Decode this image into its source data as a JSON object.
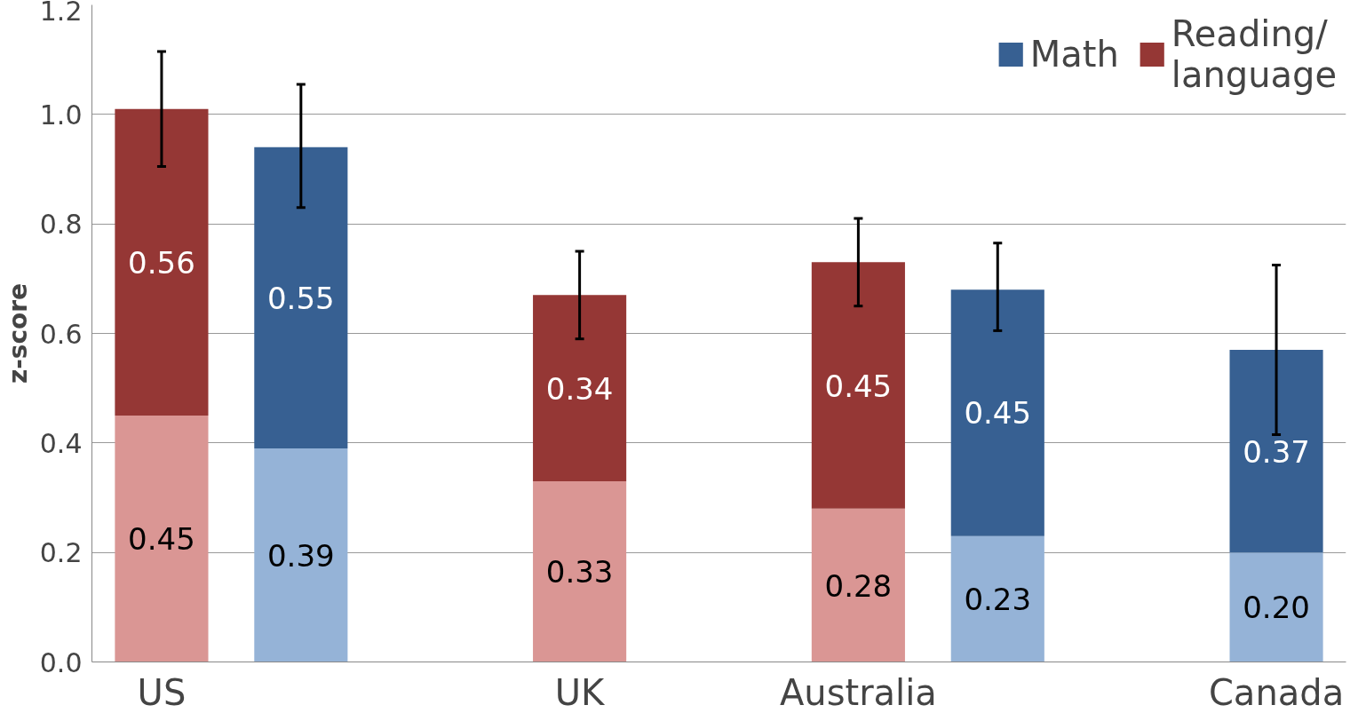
{
  "chart_data": {
    "type": "bar",
    "stacked": true,
    "ylabel": "z-score",
    "categories": [
      "US",
      null,
      null,
      "UK",
      null,
      "Australia",
      null,
      null,
      "Canada"
    ],
    "series": [
      {
        "color": "#da9694",
        "values": [
          0.45,
          null,
          null,
          0.33,
          null,
          0.28,
          null,
          null,
          null
        ]
      },
      {
        "color": "#95b3d7",
        "values": [
          null,
          0.39,
          null,
          null,
          null,
          null,
          0.23,
          null,
          0.2
        ],
        "value_labels": [
          null,
          "0.39",
          null,
          null,
          null,
          null,
          "0.23",
          null,
          "0.20"
        ]
      },
      {
        "name": "Reading/\nlanguage",
        "color": "#953735",
        "values": [
          0.56,
          null,
          null,
          0.34,
          null,
          0.45,
          null,
          null,
          null
        ],
        "errors": [
          [
            0.905,
            1.115
          ],
          null,
          null,
          [
            0.59,
            0.75
          ],
          null,
          [
            0.65,
            0.81
          ],
          null,
          null,
          null
        ]
      },
      {
        "name": "Math",
        "color": "#376092",
        "values": [
          null,
          0.55,
          null,
          null,
          null,
          null,
          0.45,
          null,
          0.37
        ],
        "errors": [
          null,
          [
            0.83,
            1.055
          ],
          null,
          null,
          null,
          null,
          [
            0.605,
            0.765
          ],
          null,
          [
            0.415,
            0.725
          ]
        ]
      }
    ],
    "ylim": [
      0,
      1.2
    ],
    "yticks": [
      {
        "value": 0,
        "label": "0.0"
      },
      {
        "value": 0.2,
        "label": "0.2"
      },
      {
        "value": 0.4,
        "label": "0.4"
      },
      {
        "value": 0.6,
        "label": "0.6"
      },
      {
        "value": 0.8,
        "label": "0.8"
      },
      {
        "value": 1.0,
        "label": "1.0"
      },
      {
        "value": 1.2,
        "label": "1.2"
      }
    ],
    "grid": "y",
    "legend": "top right",
    "data_labels": true
  }
}
